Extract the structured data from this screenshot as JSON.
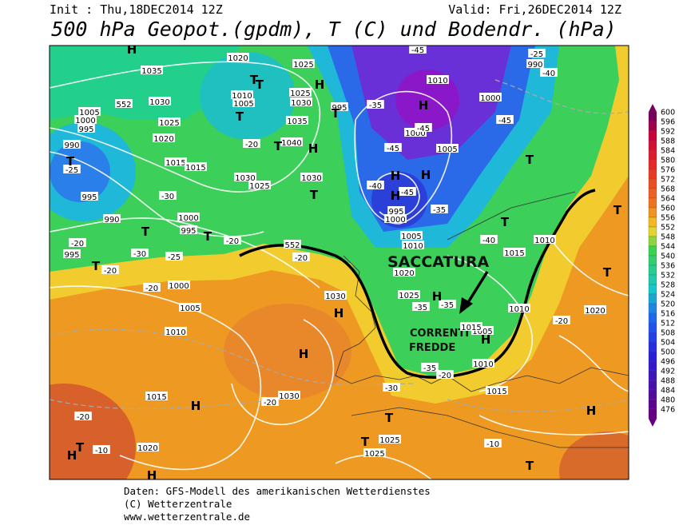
{
  "header": {
    "init": "Init : Thu,18DEC2014 12Z",
    "valid": "Valid: Fri,26DEC2014 12Z",
    "title": "500 hPa Geopot.(gpdm), T (C) und Bodendr. (hPa)"
  },
  "colorbar": {
    "levels": [
      600,
      596,
      592,
      588,
      584,
      580,
      576,
      572,
      568,
      564,
      560,
      556,
      552,
      548,
      544,
      540,
      536,
      532,
      528,
      524,
      520,
      516,
      512,
      508,
      504,
      500,
      496,
      492,
      488,
      484,
      480,
      476
    ]
  },
  "annotations": {
    "trough": "SACCATURA",
    "cold_1": "CORRENTI",
    "cold_2": "FREDDE"
  },
  "map_labels": [
    "1035",
    "1030",
    "1025",
    "1020",
    "1015",
    "1015",
    "1005",
    "1000",
    "995",
    "990",
    "995",
    "990",
    "1000",
    "995",
    "995",
    "1020",
    "1025",
    "1010",
    "1005",
    "1025",
    "1030",
    "1035",
    "1040",
    "1030",
    "1025",
    "1030",
    "1000",
    "1005",
    "1000",
    "995",
    "1000",
    "1005",
    "1010",
    "1020",
    "1025",
    "1030",
    "1005",
    "1010",
    "1015",
    "1030",
    "1025",
    "1025",
    "1020",
    "1015",
    "1010",
    "1005",
    "1015",
    "1010",
    "1010",
    "1020",
    "1000",
    "552",
    "552",
    "-25",
    "-30",
    "-20",
    "-30",
    "-25",
    "-20",
    "-20",
    "-20",
    "-20",
    "-20",
    "-35",
    "-45",
    "-45",
    "-45",
    "-45",
    "-40",
    "-35",
    "-40",
    "-45",
    "-40",
    "-35",
    "-35",
    "-35",
    "-30",
    "-20",
    "-20",
    "-10",
    "-10",
    "-20",
    "-20",
    "-25",
    "990",
    "995",
    "1015",
    "1010",
    "H",
    "T",
    "T",
    "T",
    "H",
    "T",
    "T",
    "H",
    "T",
    "H",
    "T",
    "T",
    "T",
    "T",
    "T",
    "T",
    "T",
    "T",
    "H",
    "H",
    "H",
    "T",
    "T",
    "H",
    "H",
    "H",
    "H",
    "H",
    "T",
    "H",
    "H",
    "H",
    "T"
  ],
  "footer": {
    "line1": "Daten: GFS-Modell des amerikanischen Wetterdienstes",
    "line2": "(C) Wetterzentrale",
    "line3": "www.wetterzentrale.de"
  }
}
